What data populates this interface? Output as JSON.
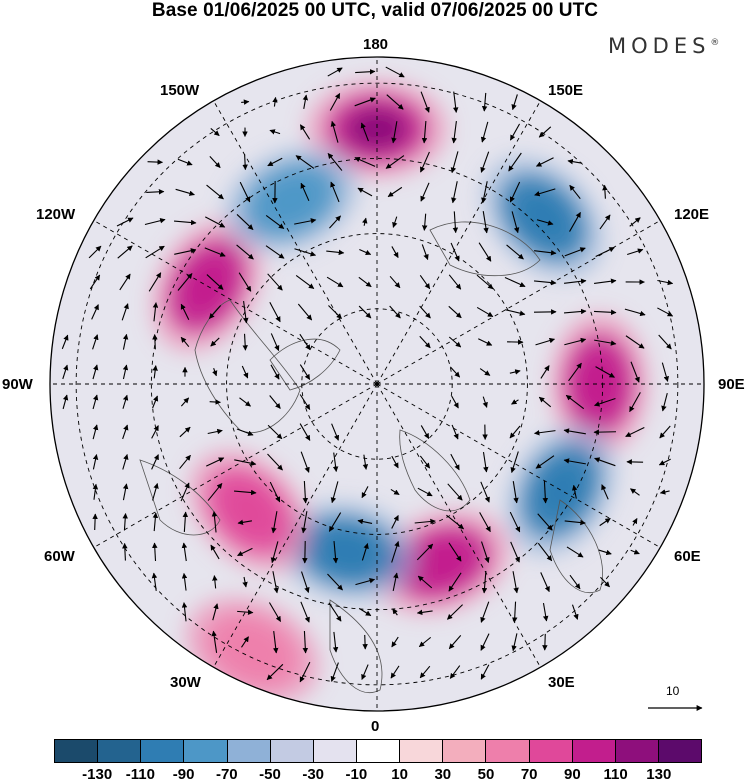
{
  "title": "Base 01/06/2025 00 UTC, valid 07/06/2025 00 UTC",
  "brand": {
    "name": "MODES",
    "mark": "®"
  },
  "map": {
    "projection": "north-polar-stereographic",
    "longitude_labels": {
      "l180": "180",
      "l150e": "150E",
      "l120e": "120E",
      "l90e": "90E",
      "l60e": "60E",
      "l30e": "30E",
      "l0": "0",
      "l30w": "30W",
      "l60w": "60W",
      "l90w": "90W",
      "l120w": "120W",
      "l150w": "150W"
    },
    "anomaly_centers": [
      {
        "sign": "positive",
        "strength": 110,
        "near": "180"
      },
      {
        "sign": "negative",
        "strength": 90,
        "near": "150E-120E"
      },
      {
        "sign": "positive",
        "strength": 90,
        "near": "90E"
      },
      {
        "sign": "negative",
        "strength": 90,
        "near": "60E"
      },
      {
        "sign": "positive",
        "strength": 90,
        "near": "30E"
      },
      {
        "sign": "negative",
        "strength": 90,
        "near": "30W-0"
      },
      {
        "sign": "positive",
        "strength": 70,
        "near": "60W"
      },
      {
        "sign": "positive",
        "strength": 90,
        "near": "120W"
      },
      {
        "sign": "negative",
        "strength": 70,
        "near": "150W"
      },
      {
        "sign": "positive",
        "strength": 50,
        "near": "30W"
      }
    ]
  },
  "reference_vector": {
    "label": "10"
  },
  "colorbar": {
    "colors": [
      "#1b4a6b",
      "#23638f",
      "#2f7db3",
      "#4d97c7",
      "#8fb1d7",
      "#c3cbe3",
      "#e4e2ef",
      "#ffffff",
      "#f8d7da",
      "#f3aebd",
      "#ee7fab",
      "#e0489a",
      "#c21e8d",
      "#8e0f7c",
      "#5c0a6b"
    ],
    "tick_labels": [
      "-130",
      "-110",
      "-90",
      "-70",
      "-50",
      "-30",
      "-10",
      "10",
      "30",
      "50",
      "70",
      "90",
      "110",
      "130"
    ]
  }
}
